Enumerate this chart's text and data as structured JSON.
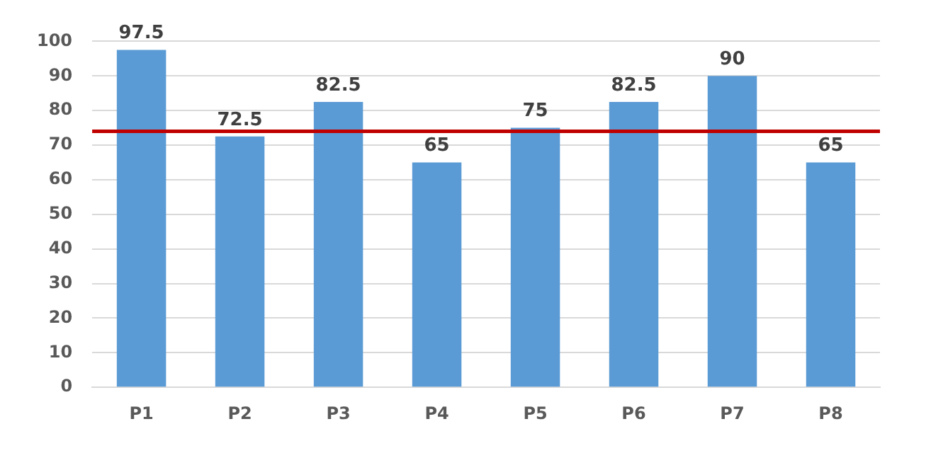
{
  "chart_data": {
    "type": "bar",
    "categories": [
      "P1",
      "P2",
      "P3",
      "P4",
      "P5",
      "P6",
      "P7",
      "P8"
    ],
    "values": [
      97.5,
      72.5,
      82.5,
      65,
      75,
      82.5,
      90,
      65
    ],
    "color": "#5b9bd5",
    "ylim": [
      0,
      100
    ],
    "yticks": [
      0,
      10,
      20,
      30,
      40,
      50,
      60,
      70,
      80,
      90,
      100
    ],
    "grid": "y",
    "data_labels": true,
    "ref_lines": [
      {
        "axis": "y",
        "value": 74,
        "color": "#c00000"
      }
    ]
  }
}
